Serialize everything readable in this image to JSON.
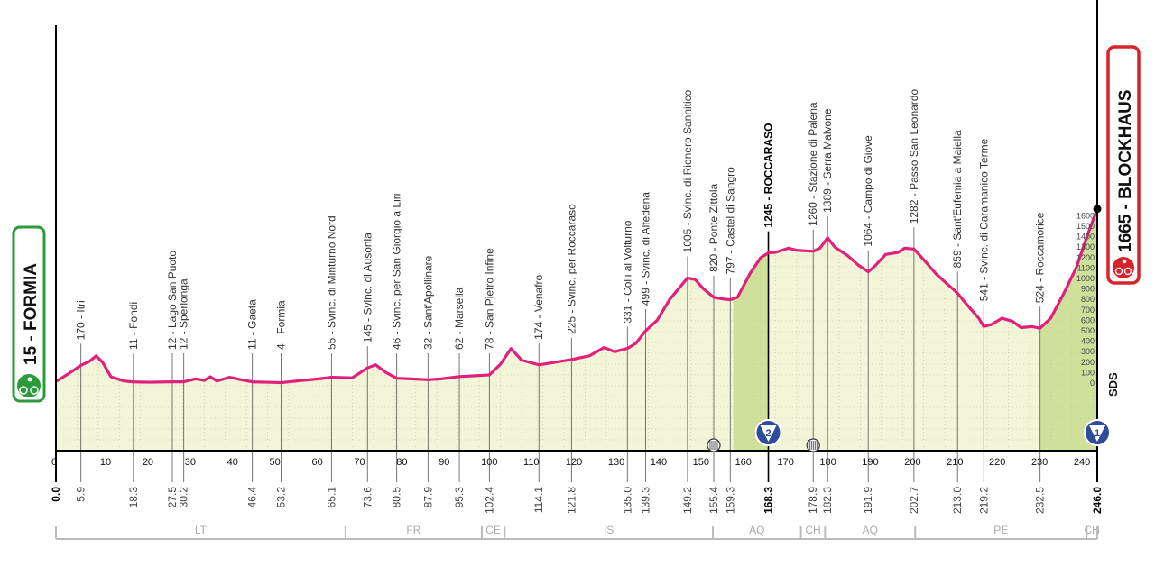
{
  "chart_data": {
    "type": "area",
    "title": "",
    "xlabel": "",
    "ylabel": "",
    "xlim": [
      0,
      246
    ],
    "ylim": [
      0,
      1700
    ],
    "line_color": "#e0207c",
    "fill_color": "#f3f5d8",
    "climb_fill_color": "#cfe09a",
    "grid": "dotted",
    "profile": [
      [
        0,
        15
      ],
      [
        3,
        90
      ],
      [
        5.9,
        170
      ],
      [
        8,
        210
      ],
      [
        9.5,
        260
      ],
      [
        11,
        200
      ],
      [
        13,
        60
      ],
      [
        16,
        20
      ],
      [
        18.3,
        11
      ],
      [
        22,
        8
      ],
      [
        27.5,
        12
      ],
      [
        30.2,
        12
      ],
      [
        33,
        40
      ],
      [
        35,
        25
      ],
      [
        36.5,
        60
      ],
      [
        38,
        20
      ],
      [
        41,
        55
      ],
      [
        44,
        30
      ],
      [
        46.4,
        11
      ],
      [
        50,
        8
      ],
      [
        53.2,
        4
      ],
      [
        57,
        20
      ],
      [
        62,
        40
      ],
      [
        65.1,
        55
      ],
      [
        70,
        50
      ],
      [
        73.6,
        145
      ],
      [
        75.5,
        175
      ],
      [
        78,
        100
      ],
      [
        80.5,
        46
      ],
      [
        84,
        40
      ],
      [
        87.9,
        32
      ],
      [
        91,
        40
      ],
      [
        95.3,
        62
      ],
      [
        99,
        70
      ],
      [
        102.4,
        78
      ],
      [
        105,
        180
      ],
      [
        107.5,
        330
      ],
      [
        110,
        220
      ],
      [
        114.1,
        174
      ],
      [
        118,
        200
      ],
      [
        121.8,
        225
      ],
      [
        126,
        260
      ],
      [
        129.5,
        340
      ],
      [
        132,
        300
      ],
      [
        135,
        331
      ],
      [
        137,
        380
      ],
      [
        139.3,
        499
      ],
      [
        142,
        600
      ],
      [
        145,
        800
      ],
      [
        149.2,
        1005
      ],
      [
        151,
        990
      ],
      [
        153,
        900
      ],
      [
        155.4,
        820
      ],
      [
        157.5,
        805
      ],
      [
        159.3,
        797
      ],
      [
        161,
        820
      ],
      [
        164,
        1050
      ],
      [
        166.5,
        1200
      ],
      [
        168.3,
        1245
      ],
      [
        170,
        1250
      ],
      [
        173,
        1290
      ],
      [
        175,
        1270
      ],
      [
        178.9,
        1260
      ],
      [
        180.5,
        1290
      ],
      [
        182.3,
        1389
      ],
      [
        184,
        1300
      ],
      [
        187,
        1220
      ],
      [
        189.5,
        1130
      ],
      [
        191.9,
        1064
      ],
      [
        193.5,
        1120
      ],
      [
        196,
        1230
      ],
      [
        199,
        1250
      ],
      [
        200.5,
        1290
      ],
      [
        202.7,
        1282
      ],
      [
        205,
        1180
      ],
      [
        208,
        1040
      ],
      [
        213,
        859
      ],
      [
        215,
        760
      ],
      [
        216.5,
        690
      ],
      [
        218,
        620
      ],
      [
        219.2,
        541
      ],
      [
        221,
        560
      ],
      [
        223.5,
        620
      ],
      [
        226,
        590
      ],
      [
        228,
        530
      ],
      [
        230.5,
        540
      ],
      [
        232.5,
        524
      ],
      [
        235,
        620
      ],
      [
        238,
        850
      ],
      [
        241,
        1100
      ],
      [
        244,
        1450
      ],
      [
        246,
        1665
      ]
    ],
    "climb_segments": [
      [
        160,
        168.3
      ],
      [
        232.5,
        246
      ]
    ],
    "waypoints": [
      {
        "km": 5.9,
        "elev": 170,
        "label": "170 - Itri"
      },
      {
        "km": 18.3,
        "elev": 11,
        "label": "11 - Fondi"
      },
      {
        "km": 27.5,
        "elev": 12,
        "label": "12 - Lago San Puoto"
      },
      {
        "km": 30.2,
        "elev": 12,
        "label": "12 - Sperlonga"
      },
      {
        "km": 46.4,
        "elev": 11,
        "label": "11 - Gaeta"
      },
      {
        "km": 53.2,
        "elev": 4,
        "label": "4 - Formia"
      },
      {
        "km": 65.1,
        "elev": 55,
        "label": "55 - Svinc. di Minturno Nord"
      },
      {
        "km": 73.6,
        "elev": 145,
        "label": "145 - Svinc. di Ausonia"
      },
      {
        "km": 80.5,
        "elev": 46,
        "label": "46 - Svinc. per San Giorgio a Liri"
      },
      {
        "km": 87.9,
        "elev": 32,
        "label": "32 - Sant'Apollinare"
      },
      {
        "km": 95.3,
        "elev": 62,
        "label": "62 - Marsella"
      },
      {
        "km": 102.4,
        "elev": 78,
        "label": "78 - San Pietro Infine"
      },
      {
        "km": 114.1,
        "elev": 174,
        "label": "174 - Venafro"
      },
      {
        "km": 121.8,
        "elev": 225,
        "label": "225 - Svinc. per Roccaraso"
      },
      {
        "km": 135.0,
        "elev": 331,
        "label": "331 - Colli al Volturno"
      },
      {
        "km": 139.3,
        "elev": 499,
        "label": "499 - Svinc. di Alfedena"
      },
      {
        "km": 149.2,
        "elev": 1005,
        "label": "1005 - Svinc. di Rionero Sannitico"
      },
      {
        "km": 155.4,
        "elev": 820,
        "label": "820 - Ponte Zittola"
      },
      {
        "km": 159.3,
        "elev": 797,
        "label": "797 - Castel di Sangro"
      },
      {
        "km": 168.3,
        "elev": 1245,
        "label": "1245 - ROCCARASO",
        "bold": true
      },
      {
        "km": 178.9,
        "elev": 1260,
        "label": "1260 - Stazione di Palena"
      },
      {
        "km": 182.3,
        "elev": 1389,
        "label": "1389 - Serra Malvone"
      },
      {
        "km": 191.9,
        "elev": 1064,
        "label": "1064 - Campo di Giove"
      },
      {
        "km": 202.7,
        "elev": 1282,
        "label": "1282 - Passo San Leonardo"
      },
      {
        "km": 213.0,
        "elev": 859,
        "label": "859 - Sant'Eufemia a Maiella"
      },
      {
        "km": 219.2,
        "elev": 541,
        "label": "541 - Svinc. di Caramanico Terme"
      },
      {
        "km": 232.5,
        "elev": 524,
        "label": "524 - Roccamorice"
      }
    ],
    "km_marks": [
      {
        "km": 0,
        "label": "0.0",
        "bold": true
      },
      {
        "km": 5.9,
        "label": "5.9"
      },
      {
        "km": 18.3,
        "label": "18.3"
      },
      {
        "km": 27.5,
        "label": "27.5"
      },
      {
        "km": 30.2,
        "label": "30.2"
      },
      {
        "km": 46.4,
        "label": "46.4"
      },
      {
        "km": 53.2,
        "label": "53.2"
      },
      {
        "km": 65.1,
        "label": "65.1"
      },
      {
        "km": 73.6,
        "label": "73.6"
      },
      {
        "km": 80.5,
        "label": "80.5"
      },
      {
        "km": 87.9,
        "label": "87.9"
      },
      {
        "km": 95.3,
        "label": "95.3"
      },
      {
        "km": 102.4,
        "label": "102.4"
      },
      {
        "km": 114.1,
        "label": "114.1"
      },
      {
        "km": 121.8,
        "label": "121.8"
      },
      {
        "km": 135.0,
        "label": "135.0"
      },
      {
        "km": 139.3,
        "label": "139.3"
      },
      {
        "km": 149.2,
        "label": "149.2"
      },
      {
        "km": 155.4,
        "label": "155.4"
      },
      {
        "km": 159.3,
        "label": "159.3"
      },
      {
        "km": 168.3,
        "label": "168.3",
        "bold": true
      },
      {
        "km": 178.9,
        "label": "178.9"
      },
      {
        "km": 182.3,
        "label": "182.3"
      },
      {
        "km": 191.9,
        "label": "191.9"
      },
      {
        "km": 202.7,
        "label": "202.7"
      },
      {
        "km": 213.0,
        "label": "213.0"
      },
      {
        "km": 219.2,
        "label": "219.2"
      },
      {
        "km": 232.5,
        "label": "232.5"
      },
      {
        "km": 246.0,
        "label": "246.0",
        "bold": true
      }
    ],
    "x_ticks": [
      "0",
      "10",
      "20",
      "30",
      "40",
      "50",
      "60",
      "70",
      "80",
      "90",
      "100",
      "110",
      "120",
      "130",
      "140",
      "150",
      "160",
      "170",
      "180",
      "190",
      "200",
      "210",
      "220",
      "230",
      "240"
    ],
    "elev_ticks": [
      "0",
      "100",
      "200",
      "300",
      "400",
      "500",
      "600",
      "700",
      "800",
      "900",
      "1000",
      "1100",
      "1200",
      "1300",
      "1400",
      "1500",
      "1600"
    ],
    "regions": [
      {
        "from": 0,
        "to": 68.4,
        "label": "LT"
      },
      {
        "from": 68.4,
        "to": 100.6,
        "label": "FR"
      },
      {
        "from": 100.6,
        "to": 106,
        "label": "CE"
      },
      {
        "from": 106,
        "to": 155.2,
        "label": "IS"
      },
      {
        "from": 155.2,
        "to": 176,
        "label": "AQ"
      },
      {
        "from": 176,
        "to": 181.7,
        "label": "CH"
      },
      {
        "from": 181.7,
        "to": 203,
        "label": "AQ"
      },
      {
        "from": 203,
        "to": 243.5,
        "label": "PE"
      },
      {
        "from": 243.5,
        "to": 246,
        "label": "CH"
      }
    ],
    "kom_markers": [
      {
        "km": 168.3,
        "label": "2"
      },
      {
        "km": 246,
        "label": "1"
      }
    ],
    "sprint_markers": [
      155.4,
      178.9
    ],
    "start": {
      "label": "15 - FORMIA",
      "color": "#2a9a3a",
      "icon": "cyclist-icon"
    },
    "finish": {
      "label": "1665 - BLOCKHAUS",
      "color": "#d8232a",
      "icon": "mountain-bike-icon"
    },
    "sds_label": "SDS"
  }
}
